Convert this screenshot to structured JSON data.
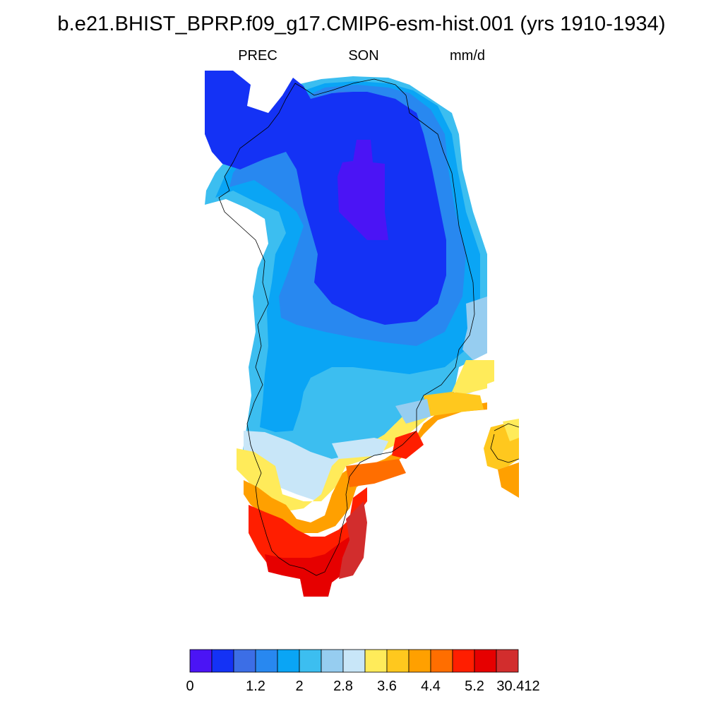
{
  "figure": {
    "title": "b.e21.BHIST_BPRP.f09_g17.CMIP6-esm-hist.001 (yrs 1910-1934)",
    "variable": "PREC",
    "season": "SON",
    "units": "mm/d"
  },
  "colorbar": {
    "colors": [
      "#4b14f5",
      "#1432f5",
      "#3c6ee6",
      "#2888f0",
      "#0aa5f5",
      "#3cbef0",
      "#96cdf0",
      "#c8e6f8",
      "#ffeb5a",
      "#ffc81e",
      "#ffa000",
      "#ff6e00",
      "#ff1e00",
      "#e60000",
      "#d22d2d"
    ],
    "tick_labels": [
      "0",
      "1.2",
      "2",
      "2.8",
      "3.6",
      "4.4",
      "5.2",
      "30.412"
    ]
  },
  "map": {
    "projection": "polar stereographic",
    "region": "Greenland",
    "coastline": true,
    "field": "precipitation rate, 25-year autumn (SON) mean"
  }
}
